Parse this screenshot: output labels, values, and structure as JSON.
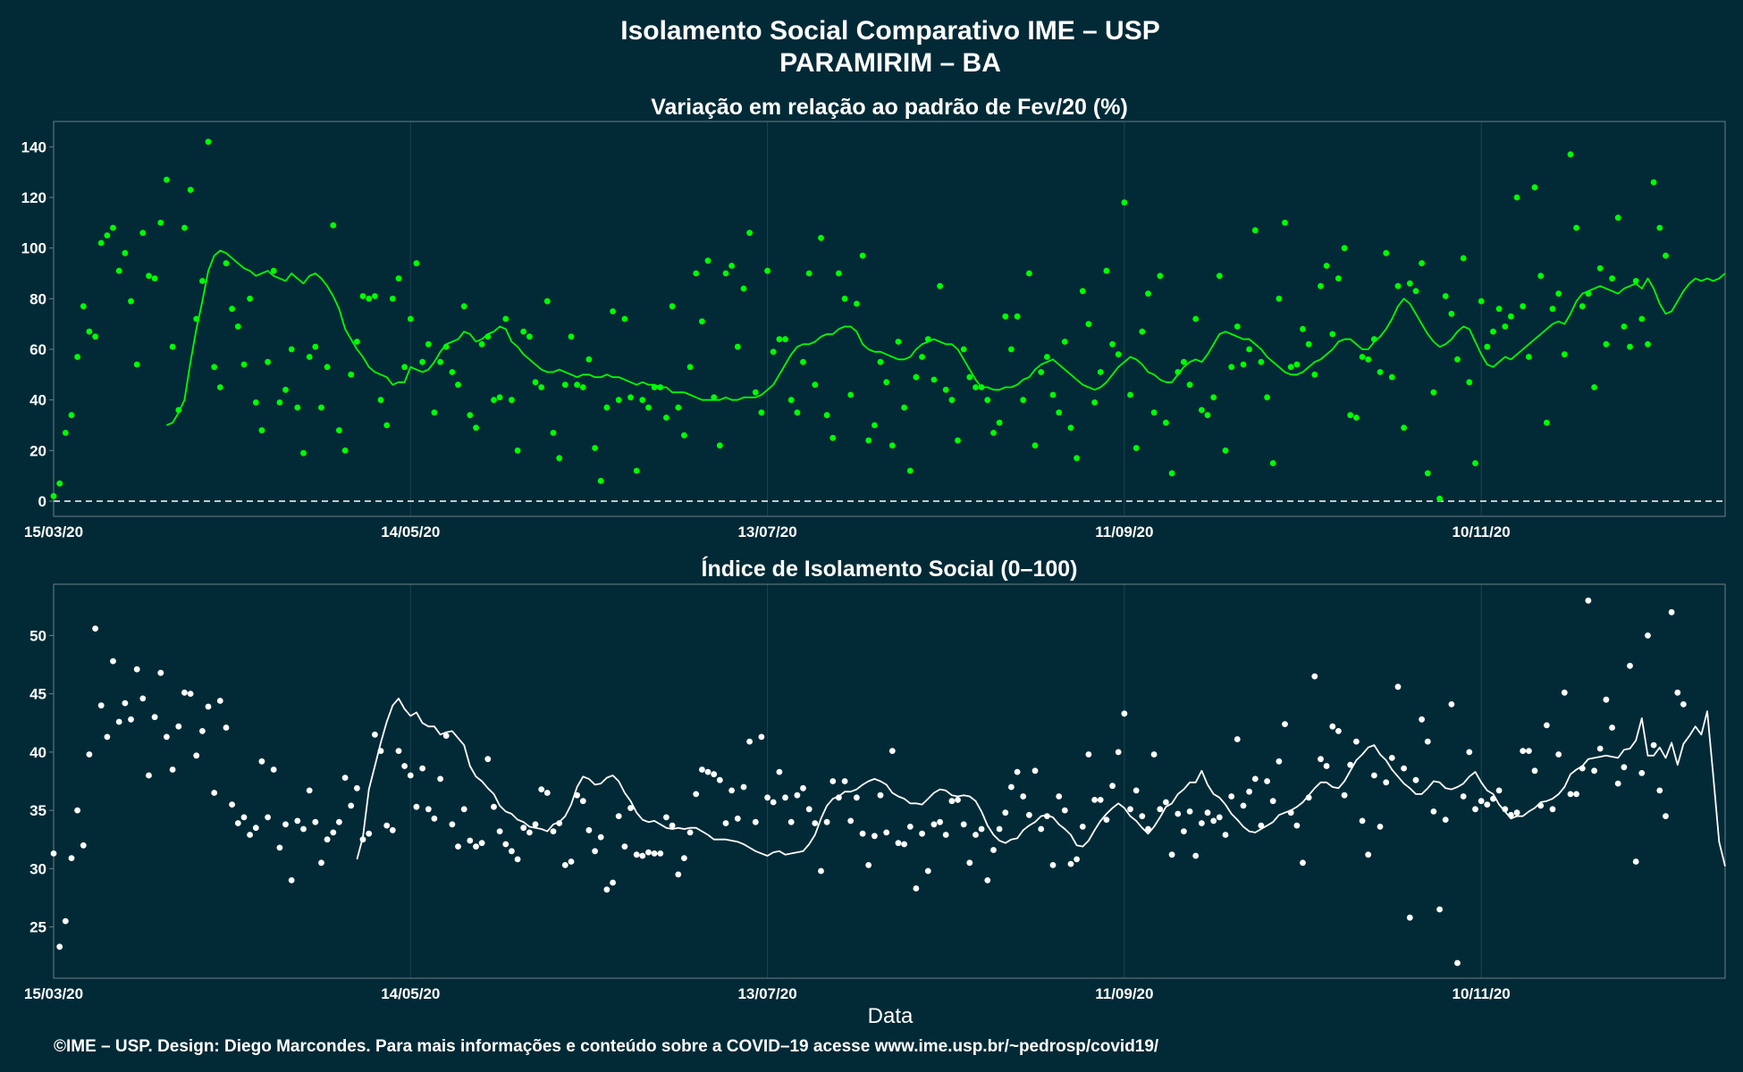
{
  "header": {
    "title_line1": "Isolamento Social Comparativo IME – USP",
    "title_line2": "PARAMIRIM – BA"
  },
  "footer": {
    "xlabel": "Data",
    "credit": "©IME – USP. Design: Diego Marcondes. Para mais informações e conteúdo sobre a COVID–19 acesse www.ime.usp.br/~pedrosp/covid19/"
  },
  "colors": {
    "background": "#022a36",
    "variation_series": "#00ff00",
    "index_series": "#ffffff"
  },
  "chart_data": [
    {
      "type": "scatter",
      "title": "Variação em relação ao padrão de Fev/20 (%)",
      "xlabel": "",
      "ylabel": "",
      "x_start": "15/03/20",
      "x_end": "21/12/20",
      "x_ticks": [
        "15/03/20",
        "14/05/20",
        "13/07/20",
        "11/09/20",
        "10/11/20"
      ],
      "ylim": [
        -6,
        150
      ],
      "y_ticks": [
        0,
        20,
        40,
        60,
        80,
        100,
        120,
        140
      ],
      "reference_line": 0,
      "grid": true,
      "legend": "none",
      "series": [
        {
          "kind": "daily_points",
          "values": [
            2,
            7,
            27,
            34,
            57,
            77,
            67,
            65,
            102,
            105,
            108,
            91,
            98,
            79,
            54,
            106,
            89,
            88,
            110,
            127,
            61,
            36,
            108,
            123,
            72,
            87,
            142,
            53,
            45,
            94,
            76,
            69,
            54,
            80,
            39,
            28,
            55,
            91,
            39,
            44,
            60,
            37,
            19,
            57,
            61,
            37,
            53,
            109,
            28,
            20,
            50,
            63,
            81,
            80,
            81,
            40,
            30,
            80,
            88,
            53,
            72,
            94,
            55,
            62,
            35,
            55,
            61,
            51,
            46,
            77,
            34,
            29,
            62,
            65,
            40,
            41,
            72,
            40,
            20,
            67,
            65,
            47,
            45,
            79,
            27,
            17,
            46,
            65,
            46,
            45,
            56,
            21,
            8,
            37,
            75,
            40,
            72,
            41,
            12,
            40,
            37,
            45,
            45,
            33,
            77,
            37,
            26,
            53,
            90,
            71,
            95,
            41,
            22,
            90,
            93,
            61,
            84,
            106,
            43,
            35,
            91,
            59,
            64,
            64,
            40,
            35,
            55,
            90,
            46,
            104,
            34,
            25,
            90,
            80,
            42,
            78,
            97,
            24,
            30,
            55,
            47,
            22,
            63,
            37,
            12,
            49,
            57,
            64,
            48,
            85,
            44,
            40,
            24,
            60,
            49,
            45,
            45,
            40,
            27,
            31,
            73,
            60,
            73,
            40,
            90,
            22,
            51,
            57,
            42,
            35,
            63,
            29,
            17,
            83,
            70,
            39,
            51,
            91,
            62,
            58,
            118,
            42,
            21,
            67,
            82,
            35,
            89,
            31,
            11,
            51,
            55,
            46,
            72,
            36,
            34,
            41,
            89,
            20,
            53,
            69,
            54,
            60,
            107,
            55,
            41,
            15,
            80,
            110,
            53,
            54,
            68,
            62,
            50,
            85,
            93,
            66,
            88,
            100,
            34,
            33,
            57,
            56,
            64,
            51,
            98,
            49,
            85,
            29,
            86,
            83,
            94,
            11,
            43,
            1,
            81,
            74,
            56,
            96,
            47,
            15,
            79,
            61,
            67,
            76,
            69,
            73,
            120,
            77,
            57,
            124,
            89,
            31,
            76,
            82,
            58,
            137,
            108,
            77,
            82,
            45,
            92,
            62,
            88,
            112,
            69,
            61,
            87,
            72,
            62,
            126,
            108,
            97
          ]
        },
        {
          "kind": "moving_average",
          "values": [
            30,
            31,
            35,
            40,
            55,
            68,
            79,
            91,
            97,
            99,
            98,
            96,
            94,
            92,
            91,
            89,
            90,
            91,
            89,
            88,
            87,
            90,
            88,
            86,
            89,
            90,
            88,
            85,
            81,
            76,
            68,
            64,
            60,
            57,
            53,
            51,
            50,
            49,
            46,
            47,
            47,
            53,
            52,
            51,
            52,
            55,
            59,
            62,
            63,
            64,
            67,
            66,
            63,
            64,
            66,
            67,
            69,
            68,
            63,
            61,
            58,
            56,
            54,
            52,
            51,
            51,
            52,
            51,
            50,
            49,
            50,
            50,
            49,
            49,
            50,
            49,
            49,
            48,
            47,
            46,
            47,
            46,
            46,
            45,
            45,
            43,
            43,
            43,
            42,
            41,
            40,
            40,
            40,
            40,
            41,
            40,
            40,
            41,
            41,
            41,
            42,
            44,
            46,
            50,
            54,
            58,
            61,
            62,
            62,
            63,
            65,
            66,
            66,
            68,
            69,
            69,
            67,
            62,
            60,
            59,
            59,
            58,
            57,
            56,
            56,
            57,
            60,
            62,
            63,
            64,
            63,
            62,
            62,
            60,
            56,
            52,
            48,
            45,
            45,
            44,
            44,
            45,
            45,
            46,
            48,
            49,
            52,
            54,
            55,
            56,
            54,
            52,
            50,
            48,
            46,
            45,
            44,
            45,
            47,
            50,
            53,
            55,
            57,
            56,
            54,
            51,
            50,
            48,
            47,
            47,
            50,
            53,
            55,
            56,
            55,
            58,
            62,
            66,
            67,
            66,
            65,
            64,
            64,
            62,
            60,
            57,
            55,
            53,
            51,
            50,
            50,
            51,
            53,
            55,
            56,
            58,
            60,
            63,
            64,
            64,
            62,
            60,
            60,
            63,
            65,
            68,
            72,
            77,
            80,
            78,
            74,
            70,
            66,
            63,
            61,
            62,
            64,
            67,
            69,
            68,
            63,
            58,
            54,
            53,
            55,
            57,
            56,
            58,
            60,
            62,
            64,
            66,
            68,
            70,
            71,
            70,
            74,
            79,
            82,
            83,
            84,
            85,
            84,
            83,
            82,
            84,
            85,
            86,
            84,
            88,
            84,
            78,
            74,
            75,
            79,
            83,
            86,
            88,
            87,
            88,
            87,
            88,
            90
          ]
        }
      ]
    },
    {
      "type": "scatter",
      "title": "Índice de Isolamento Social (0–100)",
      "xlabel": "Data",
      "ylabel": "",
      "x_start": "15/03/20",
      "x_end": "21/12/20",
      "x_ticks": [
        "15/03/20",
        "14/05/20",
        "13/07/20",
        "11/09/20",
        "10/11/20"
      ],
      "ylim": [
        20.6,
        54.4
      ],
      "y_ticks": [
        25,
        30,
        35,
        40,
        45,
        50
      ],
      "grid": true,
      "legend": "none",
      "series": [
        {
          "kind": "daily_points",
          "values": [
            31.3,
            23.3,
            25.5,
            30.9,
            35,
            32,
            39.8,
            50.6,
            44,
            41.3,
            47.8,
            42.6,
            44.2,
            42.8,
            47.1,
            44.6,
            38,
            43,
            46.8,
            41.3,
            38.5,
            42.2,
            45.1,
            45,
            39.7,
            41.8,
            43.9,
            36.5,
            44.4,
            42.1,
            35.5,
            33.9,
            34.4,
            32.9,
            33.5,
            39.2,
            34.4,
            38.5,
            31.8,
            33.8,
            29,
            34.1,
            33.4,
            36.7,
            34,
            30.5,
            32.5,
            33.1,
            34,
            37.8,
            35.4,
            36.9,
            32.5,
            33,
            41.5,
            40.1,
            33.7,
            33.3,
            40.1,
            38.8,
            38,
            35.3,
            38.6,
            35.1,
            34.3,
            37.7,
            41.4,
            33.8,
            31.9,
            35.1,
            32.4,
            31.9,
            32.2,
            39.4,
            35.3,
            33.2,
            32.1,
            31.5,
            30.8,
            33.5,
            33.1,
            33.8,
            36.8,
            36.5,
            33.2,
            33.9,
            30.3,
            30.6,
            36.3,
            35.8,
            33.3,
            31.5,
            32.7,
            28.2,
            28.8,
            34.5,
            31.9,
            35.2,
            31.2,
            31.1,
            31.4,
            31.3,
            31.3,
            34.4,
            33.7,
            29.5,
            30.9,
            33.1,
            36.4,
            38.5,
            38.3,
            38.1,
            37.6,
            33.9,
            36.7,
            34.3,
            37,
            40.9,
            34,
            41.3,
            36.1,
            35.7,
            38.3,
            36.1,
            34,
            36.3,
            36.9,
            35.1,
            33.9,
            29.8,
            34,
            37.5,
            36.1,
            37.5,
            34.1,
            36.1,
            33,
            30.3,
            32.8,
            36.3,
            33.1,
            40.1,
            32.2,
            32.1,
            33.6,
            28.3,
            33,
            29.8,
            33.8,
            34,
            32.9,
            35.8,
            35.9,
            33.8,
            30.5,
            32.9,
            33.4,
            29,
            31.6,
            33.4,
            34.8,
            37,
            38.3,
            36.2,
            34.6,
            38.4,
            33.4,
            34.5,
            30.3,
            36.2,
            35,
            30.4,
            30.8,
            33.6,
            39.8,
            35.9,
            35.9,
            34.2,
            37.1,
            40,
            43.3,
            35.1,
            36.7,
            34.5,
            33.4,
            39.8,
            35.1,
            35.7,
            31.2,
            34.7,
            33.2,
            34.9,
            31.1,
            33.9,
            34.8,
            34.1,
            34.4,
            32.9,
            36.2,
            41.1,
            35.4,
            36.6,
            37.7,
            33.7,
            37.5,
            35.8,
            39.2,
            42.4,
            34.8,
            33.7,
            30.5,
            36.1,
            46.5,
            39.4,
            38.8,
            42.2,
            41.8,
            36.3,
            38.9,
            40.9,
            34.1,
            31.2,
            38,
            33.6,
            37.4,
            39.5,
            45.6,
            38.6,
            25.8,
            37.6,
            42.8,
            40.9,
            34.9,
            26.5,
            34.2,
            44.1,
            21.9,
            36.2,
            40,
            35.1,
            35.8,
            35.5,
            36,
            36.7,
            35.1,
            34.6,
            34.8,
            40.1,
            40.1,
            38.4,
            35.4,
            42.3,
            35.1,
            39.8,
            45.1,
            36.4,
            36.4,
            38.6,
            53,
            38.4,
            40.3,
            44.5,
            42.1,
            37.3,
            38.7,
            47.4,
            30.6,
            38.2,
            50,
            40.6,
            36.7,
            34.5,
            52,
            45.1,
            44.1
          ]
        },
        {
          "kind": "moving_average",
          "values": [
            30.8,
            32.7,
            36.8,
            38.8,
            40.8,
            42.6,
            44,
            44.6,
            43.7,
            43.1,
            43.4,
            42.5,
            42.2,
            42.2,
            41.5,
            41.7,
            41.8,
            41.2,
            40.6,
            38.8,
            37.9,
            37.5,
            36.9,
            36.4,
            35.4,
            34.9,
            34.7,
            34.2,
            34,
            33.6,
            33.5,
            33.4,
            33.2,
            33.8,
            34,
            34.5,
            35.5,
            37,
            37.9,
            37.7,
            37.2,
            37.3,
            37.8,
            38,
            37.5,
            36.5,
            35.8,
            34.8,
            34.2,
            34,
            34.1,
            33.8,
            33.5,
            33.4,
            33.5,
            33.4,
            33.5,
            33.5,
            33.2,
            32.9,
            32.5,
            32.5,
            32.5,
            32.4,
            32.3,
            32.1,
            31.8,
            31.5,
            31.3,
            31.1,
            31.4,
            31.5,
            31.2,
            31.3,
            31.4,
            31.5,
            32.1,
            32.9,
            34.3,
            35.4,
            36,
            36.2,
            36.6,
            36.6,
            36.8,
            37.2,
            37.5,
            37.7,
            37.5,
            37.2,
            36.5,
            36.2,
            36,
            35.6,
            35.6,
            35.5,
            36,
            36.5,
            36.8,
            36.7,
            36.3,
            36.2,
            36.3,
            36.2,
            35.8,
            34.9,
            33.7,
            32.9,
            32.4,
            32.2,
            32.5,
            32.6,
            33.3,
            33.7,
            34,
            34.5,
            34.6,
            34.4,
            33.8,
            33.4,
            32.9,
            32,
            31.9,
            32.4,
            33.3,
            34.1,
            34.7,
            35.2,
            35.6,
            35.2,
            34.5,
            34.1,
            33.5,
            33,
            33.6,
            34.4,
            35.3,
            35.6,
            36.4,
            36.8,
            37.4,
            37.4,
            38.4,
            37.2,
            36.4,
            36.1,
            35.5,
            34.7,
            34.2,
            33.6,
            33.2,
            33.1,
            33.4,
            33.7,
            34,
            34.6,
            34.8,
            35,
            35.3,
            35.7,
            36.3,
            36.9,
            37.4,
            37.4,
            37,
            36.9,
            37.5,
            38.4,
            39.3,
            39.8,
            40.4,
            40.6,
            39.8,
            39.3,
            38.5,
            37.9,
            37.3,
            36.9,
            36.4,
            36.4,
            36.9,
            37.5,
            37.4,
            36.9,
            36.8,
            37,
            37.3,
            37.9,
            38.3,
            37.4,
            36.7,
            36.4,
            35.5,
            34.9,
            34.3,
            34.5,
            34.5,
            34.9,
            35.2,
            35.7,
            35.8,
            36,
            36.4,
            37,
            38.1,
            38.5,
            38.8,
            39.4,
            39.5,
            39.6,
            39.7,
            39.6,
            39.5,
            40.2,
            40.3,
            41,
            42.9,
            39.7,
            39.7,
            40.4,
            39.5,
            40.8,
            38.9,
            40.7,
            41.4,
            42.2,
            41.5,
            43.5,
            38,
            32.3,
            30.2
          ]
        }
      ]
    }
  ]
}
